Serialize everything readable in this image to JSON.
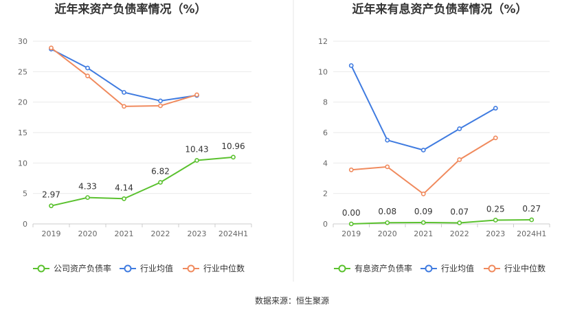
{
  "source": "数据来源：恒生聚源",
  "chart_data": [
    {
      "type": "line",
      "title": "近年来资产负债率情况（%）",
      "categories": [
        "2019",
        "2020",
        "2021",
        "2022",
        "2023",
        "2024H1"
      ],
      "ylim": [
        0,
        30
      ],
      "yticks": [
        0,
        5,
        10,
        15,
        20,
        25,
        30
      ],
      "grid": true,
      "legend_position": "bottom",
      "series": [
        {
          "name": "公司资产负债率",
          "color": "#5ac12e",
          "values": [
            2.97,
            4.33,
            4.14,
            6.82,
            10.43,
            10.96
          ],
          "labels": [
            "2.97",
            "4.33",
            "4.14",
            "6.82",
            "10.43",
            "10.96"
          ]
        },
        {
          "name": "行业均值",
          "color": "#3f7be0",
          "values": [
            28.7,
            25.6,
            21.6,
            20.2,
            21.1,
            null
          ]
        },
        {
          "name": "行业中位数",
          "color": "#f08a5d",
          "values": [
            28.9,
            24.3,
            19.3,
            19.4,
            21.2,
            null
          ]
        }
      ]
    },
    {
      "type": "line",
      "title": "近年来有息资产负债率情况（%）",
      "categories": [
        "2019",
        "2020",
        "2021",
        "2022",
        "2023",
        "2024H1"
      ],
      "ylim": [
        0,
        12
      ],
      "yticks": [
        0,
        2,
        4,
        6,
        8,
        10,
        12
      ],
      "grid": true,
      "legend_position": "bottom",
      "series": [
        {
          "name": "有息资产负债率",
          "color": "#5ac12e",
          "values": [
            0.0,
            0.08,
            0.09,
            0.07,
            0.25,
            0.27
          ],
          "labels": [
            "0.00",
            "0.08",
            "0.09",
            "0.07",
            "0.25",
            "0.27"
          ]
        },
        {
          "name": "行业均值",
          "color": "#3f7be0",
          "values": [
            10.4,
            5.5,
            4.85,
            6.25,
            7.6,
            null
          ]
        },
        {
          "name": "行业中位数",
          "color": "#f08a5d",
          "values": [
            3.55,
            3.75,
            1.97,
            4.22,
            5.65,
            null
          ]
        }
      ]
    }
  ]
}
